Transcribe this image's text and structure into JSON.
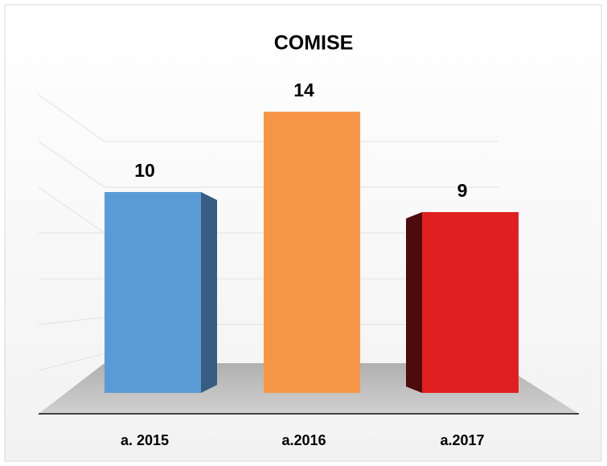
{
  "chart_data": {
    "type": "bar3d",
    "title": "COMISE",
    "categories": [
      "a. 2015",
      "a.2016",
      "a.2017"
    ],
    "values": [
      10,
      14,
      9
    ],
    "colors": [
      "#5b9bd5",
      "#f79646",
      "#e02020"
    ],
    "ylim": [
      0,
      16
    ]
  }
}
